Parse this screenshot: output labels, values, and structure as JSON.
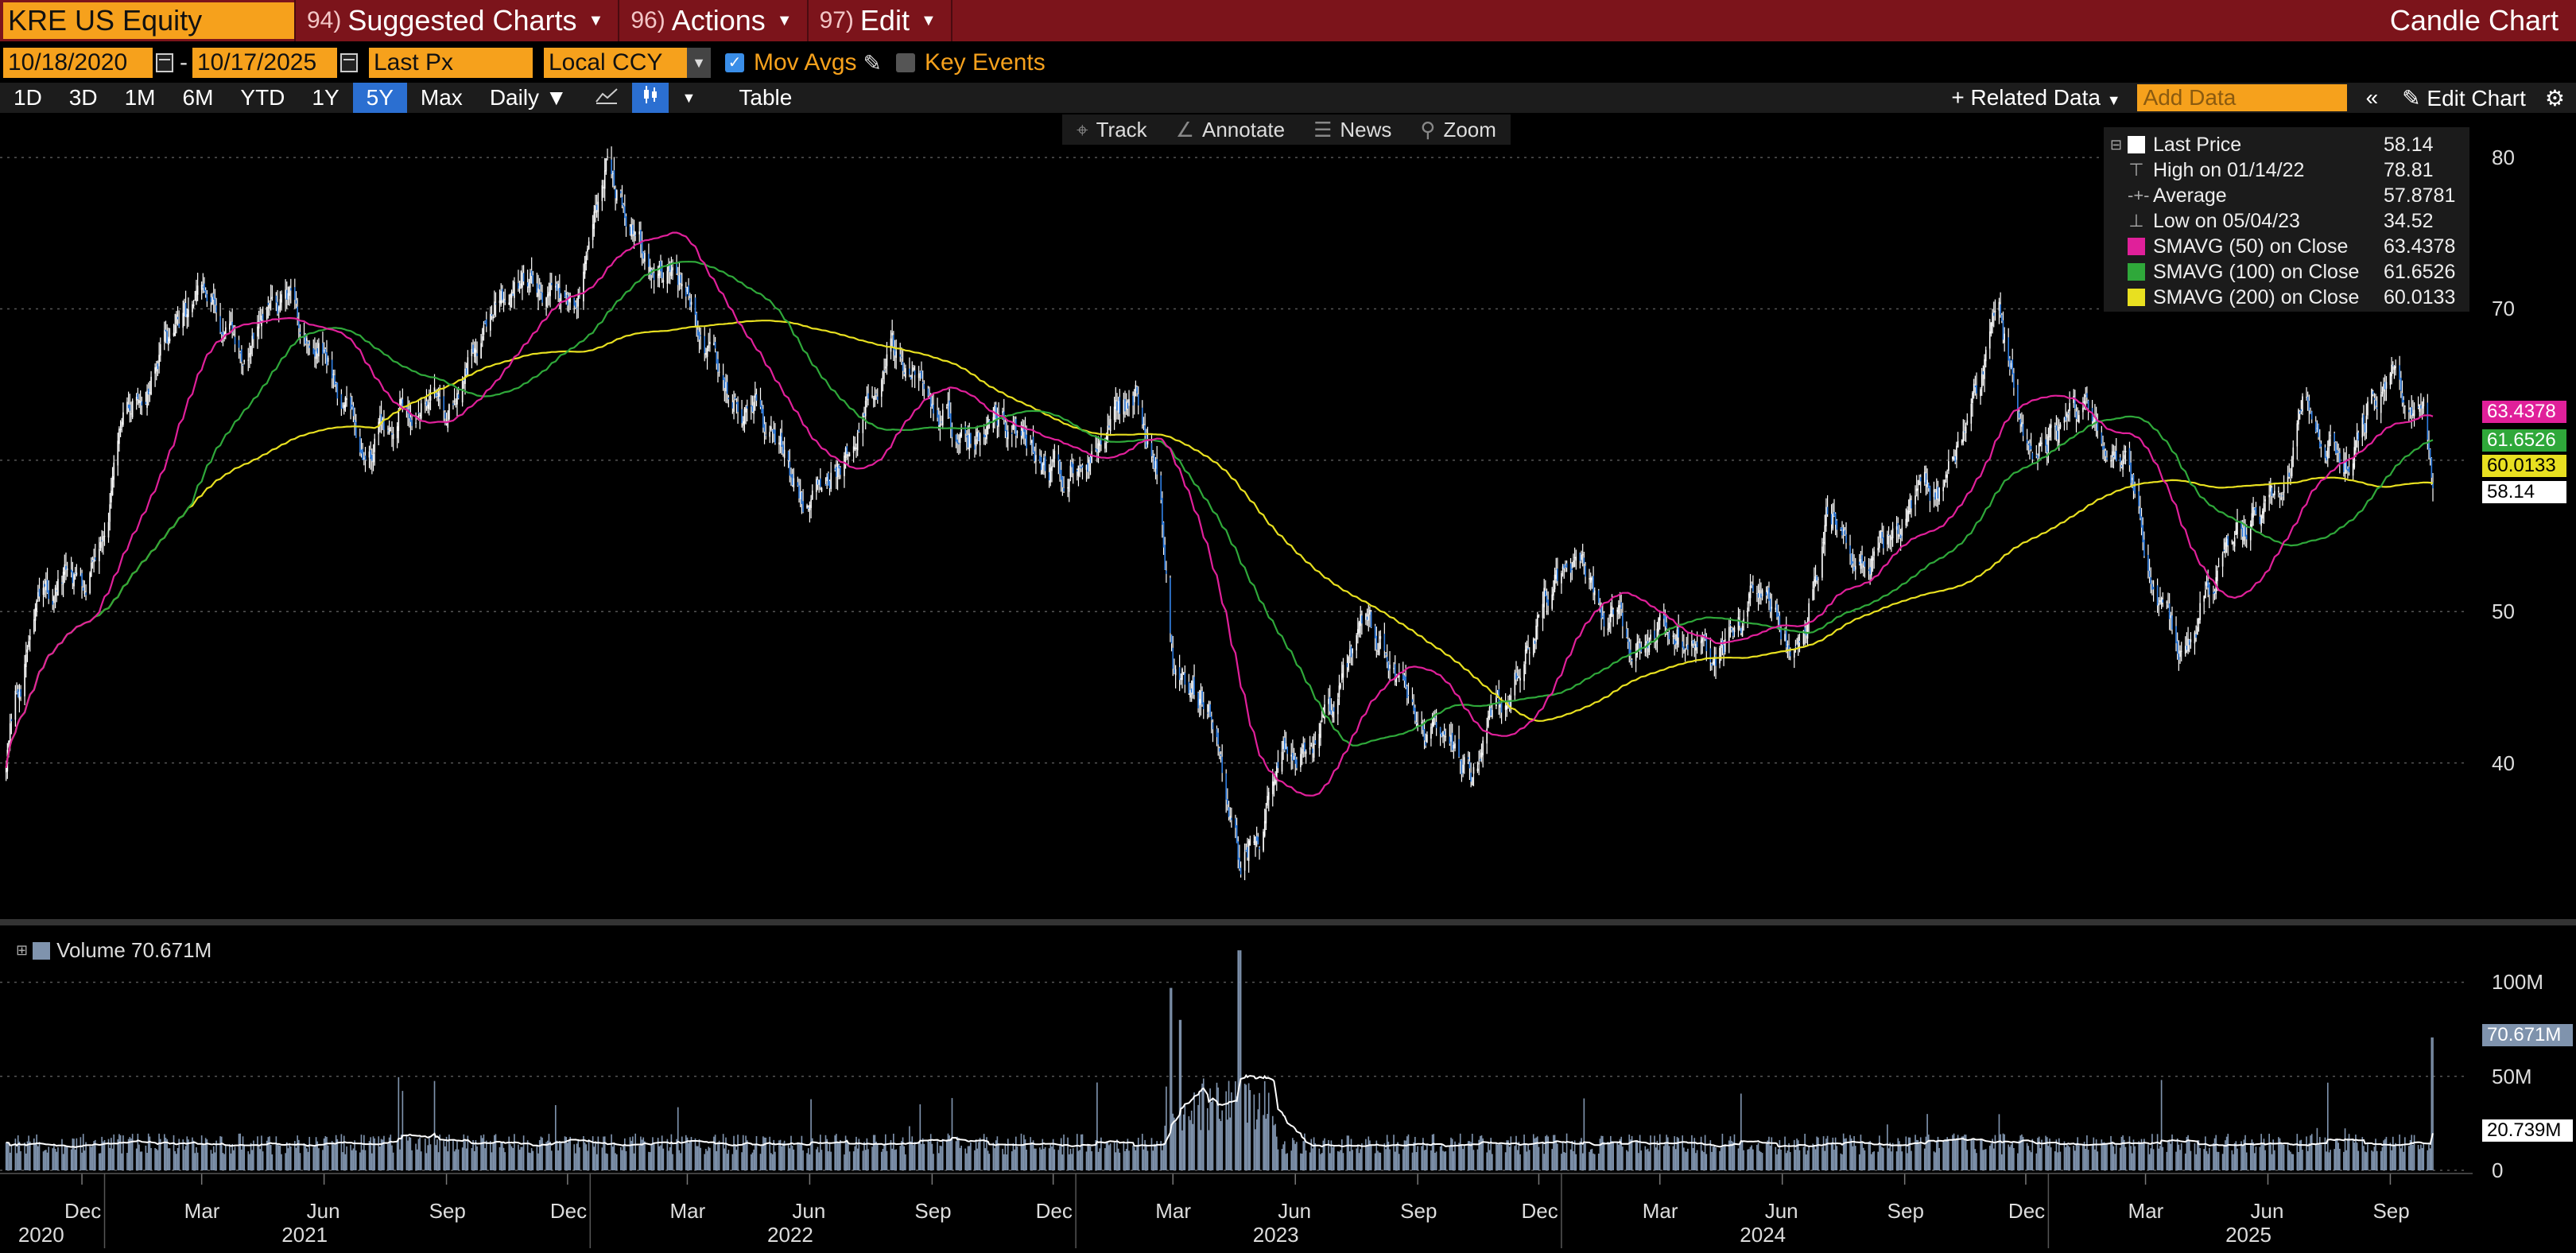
{
  "ticker": "KRE US Equity",
  "menu": {
    "suggested": {
      "num": "94)",
      "label": "Suggested Charts"
    },
    "actions": {
      "num": "96)",
      "label": "Actions"
    },
    "edit": {
      "num": "97)",
      "label": "Edit"
    },
    "chart_type": "Candle Chart"
  },
  "controls": {
    "start_date": "10/18/2020",
    "end_date": "10/17/2025",
    "dash": "-",
    "field": "Last Px",
    "currency": "Local CCY",
    "mov_avgs": "Mov Avgs",
    "key_events": "Key Events"
  },
  "ranges": [
    "1D",
    "3D",
    "1M",
    "6M",
    "YTD",
    "1Y",
    "5Y",
    "Max"
  ],
  "active_range": "5Y",
  "frequency": "Daily",
  "table_label": "Table",
  "related_data": "Related Data",
  "add_data_placeholder": "Add Data",
  "edit_chart": "Edit Chart",
  "chart_tools": {
    "track": "Track",
    "annotate": "Annotate",
    "news": "News",
    "zoom": "Zoom"
  },
  "colors": {
    "price": "#ffffff",
    "sma50": "#e0209a",
    "sma100": "#2fa83a",
    "sma200": "#e8e020",
    "volume": "#7f93ad",
    "accent": "#f6a11c"
  },
  "legend": [
    {
      "name": "Last Price",
      "value": "58.14",
      "swatch": "#ffffff"
    },
    {
      "name": "High on 01/14/22",
      "value": "78.81",
      "icon": "high-marker"
    },
    {
      "name": "Average",
      "value": "57.8781",
      "icon": "average-marker"
    },
    {
      "name": "Low on 05/04/23",
      "value": "34.52",
      "icon": "low-marker"
    },
    {
      "name": "SMAVG (50)  on Close",
      "value": "63.4378",
      "swatch": "#e0209a"
    },
    {
      "name": "SMAVG (100)  on Close",
      "value": "61.6526",
      "swatch": "#2fa83a"
    },
    {
      "name": "SMAVG (200)  on Close",
      "value": "60.0133",
      "swatch": "#e8e020"
    }
  ],
  "price_tags": [
    {
      "value": "63.4378",
      "color": "#e0209a"
    },
    {
      "value": "61.6526",
      "color": "#2fa83a"
    },
    {
      "value": "60.0133",
      "color": "#e8e020"
    },
    {
      "value": "58.14",
      "color": "#ffffff"
    }
  ],
  "volume_label": "Volume 70.671M",
  "volume_tags": [
    {
      "value": "70.671M",
      "color": "#7f93ad"
    },
    {
      "value": "20.739M",
      "color": "#ffffff"
    }
  ],
  "chart_data": {
    "type": "candlestick",
    "price_axis": {
      "range": [
        30,
        82
      ],
      "ticks": [
        "80",
        "70",
        "50",
        "40"
      ]
    },
    "volume_axis": {
      "range": [
        0,
        115
      ],
      "ticks": [
        "100M",
        "50M",
        "0"
      ]
    },
    "x_start": "2020-10-18",
    "x_end": "2025-10-17",
    "x_ticks_months": [
      "Dec",
      "Mar",
      "Jun",
      "Sep",
      "Dec",
      "Mar",
      "Jun",
      "Sep",
      "Dec",
      "Mar",
      "Jun",
      "Sep",
      "Dec",
      "Mar",
      "Jun",
      "Sep",
      "Dec",
      "Mar",
      "Jun",
      "Sep"
    ],
    "x_ticks_years": [
      "2020",
      "2021",
      "2022",
      "2023",
      "2024",
      "2025"
    ],
    "close_anchors": [
      [
        "2020-10-18",
        40
      ],
      [
        "2020-11-10",
        50
      ],
      [
        "2020-12-15",
        52
      ],
      [
        "2021-01-20",
        63
      ],
      [
        "2021-02-20",
        68
      ],
      [
        "2021-03-15",
        70
      ],
      [
        "2021-04-15",
        66
      ],
      [
        "2021-05-15",
        70
      ],
      [
        "2021-06-15",
        67
      ],
      [
        "2021-07-15",
        61
      ],
      [
        "2021-08-15",
        64
      ],
      [
        "2021-09-15",
        64
      ],
      [
        "2021-10-20",
        71
      ],
      [
        "2021-11-20",
        73
      ],
      [
        "2021-12-20",
        69
      ],
      [
        "2022-01-14",
        78.81
      ],
      [
        "2022-02-15",
        74
      ],
      [
        "2022-03-10",
        72
      ],
      [
        "2022-04-15",
        64
      ],
      [
        "2022-05-15",
        62
      ],
      [
        "2022-06-15",
        57
      ],
      [
        "2022-07-15",
        62
      ],
      [
        "2022-08-15",
        67
      ],
      [
        "2022-09-15",
        63
      ],
      [
        "2022-10-15",
        62
      ],
      [
        "2022-11-15",
        63
      ],
      [
        "2022-12-20",
        59
      ],
      [
        "2023-01-20",
        62
      ],
      [
        "2023-02-15",
        64
      ],
      [
        "2023-03-05",
        60
      ],
      [
        "2023-03-15",
        48
      ],
      [
        "2023-04-15",
        43
      ],
      [
        "2023-05-04",
        34.52
      ],
      [
        "2023-06-15",
        41
      ],
      [
        "2023-07-15",
        43
      ],
      [
        "2023-08-05",
        49
      ],
      [
        "2023-09-15",
        44
      ],
      [
        "2023-10-25",
        39
      ],
      [
        "2023-11-25",
        45
      ],
      [
        "2023-12-25",
        53
      ],
      [
        "2024-01-25",
        51
      ],
      [
        "2024-02-25",
        47
      ],
      [
        "2024-03-25",
        50
      ],
      [
        "2024-04-25",
        47
      ],
      [
        "2024-05-25",
        51
      ],
      [
        "2024-06-25",
        47
      ],
      [
        "2024-07-20",
        57
      ],
      [
        "2024-08-15",
        53
      ],
      [
        "2024-09-15",
        57
      ],
      [
        "2024-10-15",
        58
      ],
      [
        "2024-11-15",
        67
      ],
      [
        "2024-11-25",
        69
      ],
      [
        "2024-12-20",
        60
      ],
      [
        "2025-01-20",
        64
      ],
      [
        "2025-02-20",
        61
      ],
      [
        "2025-04-08",
        48
      ],
      [
        "2025-05-15",
        54
      ],
      [
        "2025-06-15",
        56
      ],
      [
        "2025-07-15",
        64
      ],
      [
        "2025-08-15",
        60
      ],
      [
        "2025-09-10",
        66
      ],
      [
        "2025-10-10",
        63
      ],
      [
        "2025-10-17",
        58.14
      ]
    ],
    "volume_spikes": [
      [
        "2023-03-13",
        97
      ],
      [
        "2023-03-20",
        80
      ],
      [
        "2023-05-04",
        117
      ],
      [
        "2025-10-17",
        70.671
      ]
    ],
    "volume_base": 14
  }
}
